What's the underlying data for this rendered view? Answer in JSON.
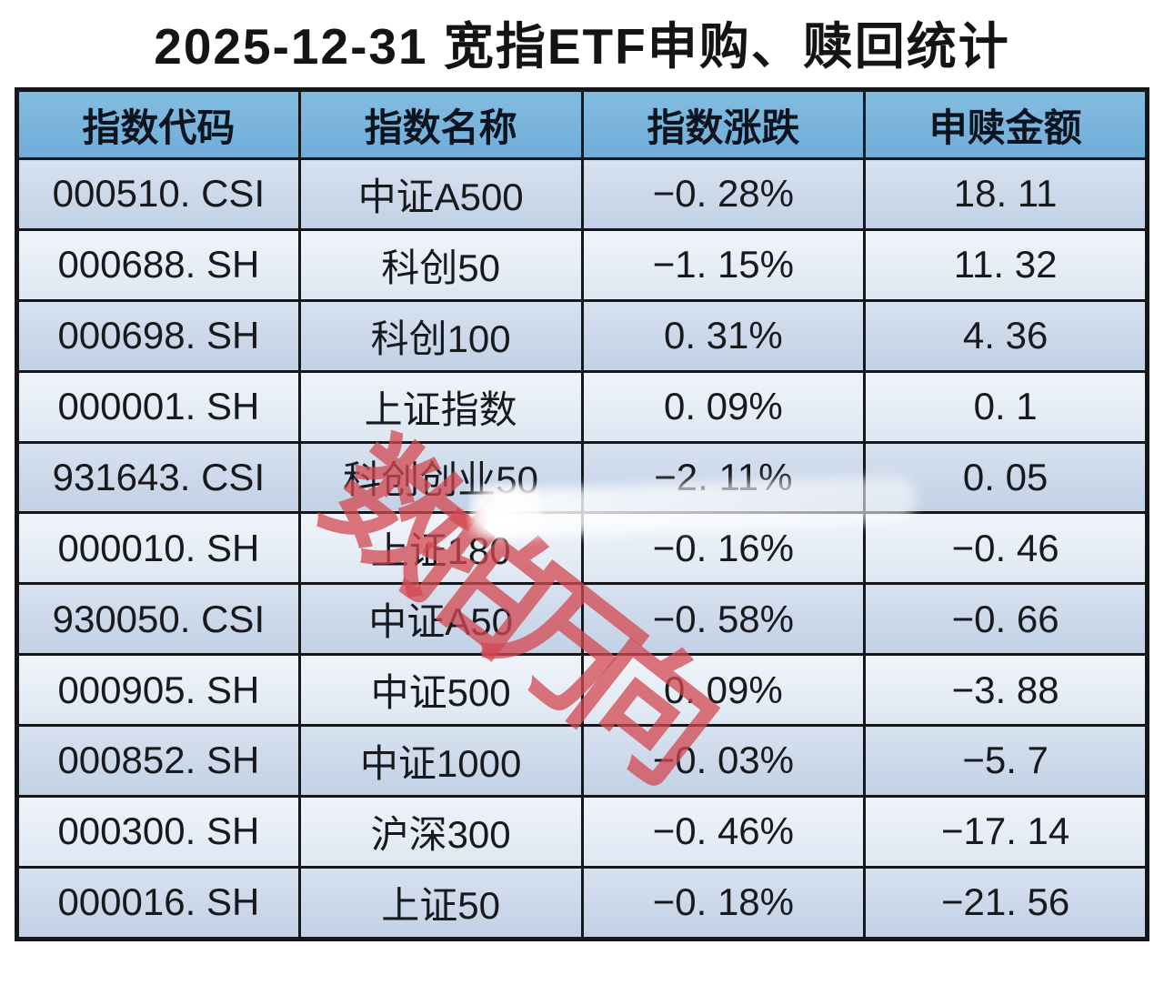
{
  "title": "2025-12-31 宽指ETF申购、赎回统计",
  "watermark_text": "数拍万向",
  "colors": {
    "header_blue": "#76b3da",
    "row_blue_top": "#d7e1ef",
    "row_blue_bottom": "#c2d1e6",
    "row_light_top": "#f0f4fa",
    "row_light_bottom": "#dde7f2",
    "border": "#15171b",
    "watermark_red": "#d34850",
    "title_color": "#141414"
  },
  "table": {
    "columns": [
      "指数代码",
      "指数名称",
      "指数涨跌",
      "申赎金额"
    ],
    "rows": [
      {
        "code": "000510. CSI",
        "name": "中证A500",
        "change": "−0. 28%",
        "amount": "18. 11"
      },
      {
        "code": "000688. SH",
        "name": "科创50",
        "change": "−1. 15%",
        "amount": "11. 32"
      },
      {
        "code": "000698. SH",
        "name": "科创100",
        "change": "0. 31%",
        "amount": "4. 36"
      },
      {
        "code": "000001. SH",
        "name": "上证指数",
        "change": "0. 09%",
        "amount": "0. 1"
      },
      {
        "code": "931643. CSI",
        "name": "科创创业50",
        "change": "−2. 11%",
        "amount": "0. 05"
      },
      {
        "code": "000010. SH",
        "name": "上证180",
        "change": "−0. 16%",
        "amount": "−0. 46"
      },
      {
        "code": "930050. CSI",
        "name": "中证A50",
        "change": "−0. 58%",
        "amount": "−0. 66"
      },
      {
        "code": "000905. SH",
        "name": "中证500",
        "change": "0. 09%",
        "amount": "−3. 88"
      },
      {
        "code": "000852. SH",
        "name": "中证1000",
        "change": "−0. 03%",
        "amount": "−5. 7"
      },
      {
        "code": "000300. SH",
        "name": "沪深300",
        "change": "−0. 46%",
        "amount": "−17. 14"
      },
      {
        "code": "000016. SH",
        "name": "上证50",
        "change": "−0. 18%",
        "amount": "−21. 56"
      }
    ]
  },
  "chart_data": {
    "type": "table",
    "title": "2025-12-31 宽指ETF申购、赎回统计",
    "columns": [
      "指数代码",
      "指数名称",
      "指数涨跌(%)",
      "申赎金额"
    ],
    "rows": [
      [
        "000510.CSI",
        "中证A500",
        -0.28,
        18.11
      ],
      [
        "000688.SH",
        "科创50",
        -1.15,
        11.32
      ],
      [
        "000698.SH",
        "科创100",
        0.31,
        4.36
      ],
      [
        "000001.SH",
        "上证指数",
        0.09,
        0.1
      ],
      [
        "931643.CSI",
        "科创创业50",
        -2.11,
        0.05
      ],
      [
        "000010.SH",
        "上证180",
        -0.16,
        -0.46
      ],
      [
        "930050.CSI",
        "中证A50",
        -0.58,
        -0.66
      ],
      [
        "000905.SH",
        "中证500",
        0.09,
        -3.88
      ],
      [
        "000852.SH",
        "中证1000",
        -0.03,
        -5.7
      ],
      [
        "000300.SH",
        "沪深300",
        -0.46,
        -17.14
      ],
      [
        "000016.SH",
        "上证50",
        -0.18,
        -21.56
      ]
    ]
  }
}
